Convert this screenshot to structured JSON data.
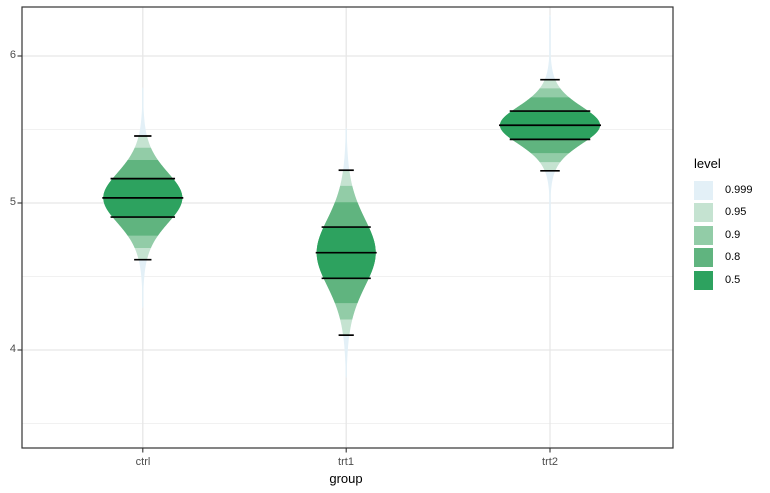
{
  "chart_data": {
    "type": "violin",
    "subtype": "gradient-eye-plot (density slabs with interval lines)",
    "title": "",
    "xlabel": "group",
    "ylabel": "",
    "categories": [
      "ctrl",
      "trt1",
      "trt2"
    ],
    "y_axis": {
      "ticks": [
        {
          "value": 4,
          "label": "4"
        },
        {
          "value": 5,
          "label": "5"
        },
        {
          "value": 6,
          "label": "6"
        }
      ],
      "minor_gridlines": [
        3.5,
        4.5,
        5.5
      ],
      "ylim": [
        3.3333,
        6.3333
      ],
      "grid": "on"
    },
    "series": [
      {
        "group": "ctrl",
        "median": 5.035,
        "scale": 0.186,
        "df": 9,
        "relative_max_width": 0.79,
        "tail_extent": 0.75,
        "intervals": {
          "p50": [
            4.9,
            5.17
          ],
          "p95": [
            4.62,
            5.46
          ]
        }
      },
      {
        "group": "trt1",
        "median": 4.662,
        "scale": 0.248,
        "df": 9,
        "relative_max_width": 0.59,
        "tail_extent": 0.85,
        "intervals": {
          "p50": [
            4.49,
            4.84
          ],
          "p95": [
            4.1,
            5.22
          ]
        }
      },
      {
        "group": "trt2",
        "median": 5.529,
        "scale": 0.137,
        "df": 9,
        "relative_max_width": 1.0,
        "tail_extent": 0.75,
        "intervals": {
          "p50": [
            5.43,
            5.63
          ],
          "p95": [
            5.22,
            5.84
          ]
        }
      }
    ],
    "levels": [
      {
        "label": "0.999",
        "t_bound": 4.781,
        "color": "#E3F0F7"
      },
      {
        "label": "0.95",
        "t_bound": 2.2622,
        "color": "#C5E3D1"
      },
      {
        "label": "0.9",
        "t_bound": 1.8331,
        "color": "#92CCA7"
      },
      {
        "label": "0.8",
        "t_bound": 1.383,
        "color": "#60B47F"
      },
      {
        "label": "0.5",
        "t_bound": 0.7027,
        "color": "#2DA25F"
      }
    ],
    "interval_line_t": {
      "median": 0,
      "inner": 0.7027,
      "outer": 2.2622
    },
    "legend_position": "right"
  },
  "legend": {
    "title": "level",
    "items": [
      {
        "label": "0.999",
        "color": "#E3F0F7"
      },
      {
        "label": "0.95",
        "color": "#C5E3D1"
      },
      {
        "label": "0.9",
        "color": "#92CCA7"
      },
      {
        "label": "0.8",
        "color": "#60B47F"
      },
      {
        "label": "0.5",
        "color": "#2DA25F"
      }
    ]
  },
  "colors": {
    "panel_border": "#333333",
    "major_grid": "#e7e7e7",
    "minor_grid": "#f1f1f1",
    "tick_text": "#4d4d4d",
    "interval_line": "#000000",
    "background": "#ffffff"
  }
}
